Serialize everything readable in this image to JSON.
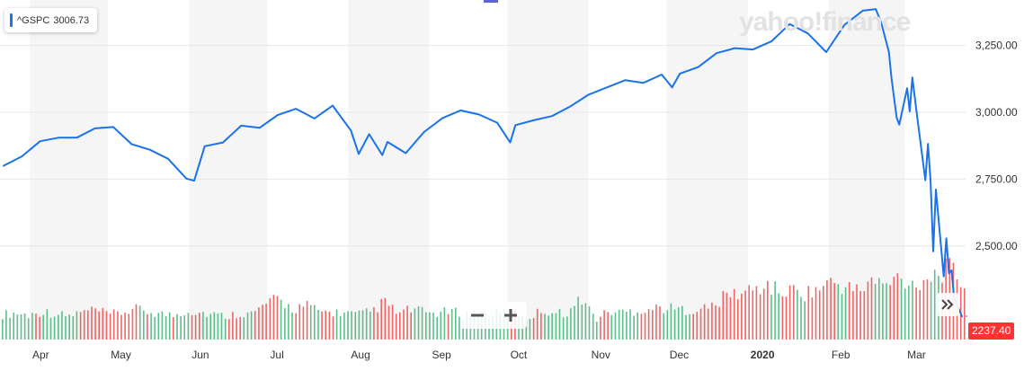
{
  "legend": {
    "symbol": "^GSPC",
    "value": "3006.73",
    "color": "#1a73e8"
  },
  "watermark": "yahoo!finance",
  "last_price": {
    "label": "2237.40",
    "value": 2237.4,
    "color": "#ff3333"
  },
  "controls": {
    "zoom_out_icon": "minus-icon",
    "zoom_in_icon": "plus-icon",
    "scroll_icon": "double-chevron-right-icon"
  },
  "chart_data": {
    "type": "line",
    "series": [
      {
        "symbol": "^GSPC",
        "color": "#1a73e8",
        "x": [
          "2019-03-22",
          "2019-03-29",
          "2019-04-05",
          "2019-04-12",
          "2019-04-19",
          "2019-04-26",
          "2019-05-03",
          "2019-05-10",
          "2019-05-17",
          "2019-05-24",
          "2019-05-31",
          "2019-06-03",
          "2019-06-07",
          "2019-06-14",
          "2019-06-21",
          "2019-06-28",
          "2019-07-05",
          "2019-07-12",
          "2019-07-19",
          "2019-07-26",
          "2019-08-02",
          "2019-08-05",
          "2019-08-09",
          "2019-08-14",
          "2019-08-16",
          "2019-08-23",
          "2019-08-30",
          "2019-09-06",
          "2019-09-13",
          "2019-09-20",
          "2019-09-27",
          "2019-10-02",
          "2019-10-04",
          "2019-10-11",
          "2019-10-18",
          "2019-10-25",
          "2019-11-01",
          "2019-11-08",
          "2019-11-15",
          "2019-11-22",
          "2019-11-29",
          "2019-12-03",
          "2019-12-06",
          "2019-12-13",
          "2019-12-20",
          "2019-12-27",
          "2020-01-03",
          "2020-01-10",
          "2020-01-17",
          "2020-01-24",
          "2020-01-31",
          "2020-02-07",
          "2020-02-14",
          "2020-02-19",
          "2020-02-21",
          "2020-02-24",
          "2020-02-25",
          "2020-02-27",
          "2020-02-28",
          "2020-03-02",
          "2020-03-03",
          "2020-03-04",
          "2020-03-06",
          "2020-03-09",
          "2020-03-10",
          "2020-03-11",
          "2020-03-12",
          "2020-03-13",
          "2020-03-16",
          "2020-03-17",
          "2020-03-18",
          "2020-03-19",
          "2020-03-20",
          "2020-03-23"
        ],
        "values": [
          2800,
          2835,
          2892,
          2905,
          2905,
          2940,
          2945,
          2881,
          2860,
          2826,
          2752,
          2744,
          2873,
          2887,
          2950,
          2942,
          2990,
          3013,
          2977,
          3025,
          2932,
          2844,
          2918,
          2840,
          2889,
          2847,
          2926,
          2978,
          3007,
          2992,
          2961,
          2887,
          2952,
          2970,
          2986,
          3022,
          3066,
          3093,
          3120,
          3110,
          3141,
          3093,
          3145,
          3169,
          3221,
          3240,
          3235,
          3265,
          3330,
          3295,
          3225,
          3327,
          3380,
          3386,
          3337,
          3226,
          3128,
          2979,
          2954,
          3090,
          3003,
          3130,
          2972,
          2746,
          2882,
          2741,
          2480,
          2711,
          2386,
          2529,
          2398,
          2409,
          2305,
          2237
        ]
      }
    ],
    "volume": [
      3.2,
      3.4,
      3.1,
      3.6,
      3.3,
      3.0,
      3.5,
      3.8,
      3.2,
      3.4,
      3.9,
      3.6,
      3.3,
      3.1,
      3.7,
      3.5,
      3.2,
      3.0,
      3.4,
      3.3,
      4.6,
      5.1,
      3.9,
      4.4,
      3.6,
      3.5,
      3.4,
      3.2,
      3.6,
      4.8,
      3.3,
      3.9,
      3.5,
      3.4,
      3.6,
      3.3,
      3.4,
      3.2,
      3.5,
      3.3,
      2.9,
      3.8,
      3.4,
      3.5,
      5.4,
      2.6,
      3.6,
      3.5,
      3.7,
      3.9,
      4.1,
      3.9,
      3.8,
      3.9,
      4.3,
      5.8,
      5.9,
      6.4,
      7.0,
      6.0,
      6.3,
      5.9,
      6.6,
      7.4,
      6.7,
      6.2,
      7.6,
      6.8,
      8.0,
      7.1,
      7.8,
      8.6,
      9.0,
      7.0
    ],
    "y_ticks": [
      "2,500.00",
      "2,750.00",
      "3,000.00",
      "3,250.00"
    ],
    "x_ticks": [
      "Apr",
      "May",
      "Jun",
      "Jul",
      "Aug",
      "Sep",
      "Oct",
      "Nov",
      "Dec",
      "2020",
      "Feb",
      "Mar"
    ],
    "ylim": [
      2150,
      3420
    ],
    "grid": true,
    "legend_position": "top-left"
  }
}
